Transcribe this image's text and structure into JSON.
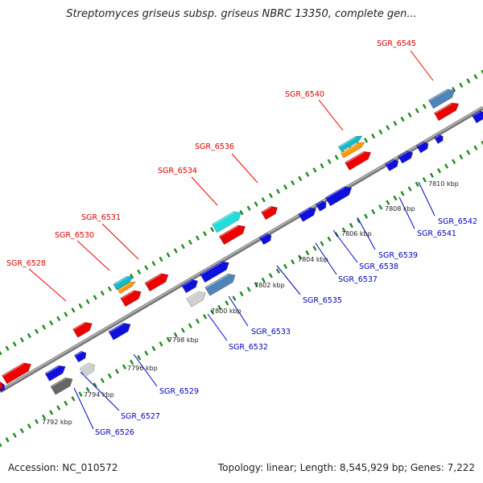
{
  "title": "Streptomyces griseus subsp. griseus NBRC 13350, complete gen...",
  "accession": "Accession: NC_010572",
  "topology": "Topology: linear; Length: 8,545,929 bp; Genes: 7,222",
  "ticks": [
    "7792 kbp",
    "7794 kbp",
    "7796 kbp",
    "7798 kbp",
    "7800 kbp",
    "7802 kbp",
    "7804 kbp",
    "7806 kbp",
    "7808 kbp",
    "7810 kbp"
  ],
  "labels_top": [
    "SGR_6528",
    "SGR_6530",
    "SGR_6531",
    "SGR_6534",
    "SGR_6536",
    "SGR_6540",
    "SGR_6545"
  ],
  "labels_bottom": [
    "SGR_6526",
    "SGR_6527",
    "SGR_6529",
    "SGR_6532",
    "SGR_6533",
    "SGR_6535",
    "SGR_6537",
    "SGR_6538",
    "SGR_6539",
    "SGR_6541",
    "SGR_6542"
  ],
  "colors": {
    "backbone": "#8c8c8c",
    "gene_red": "#ee0000",
    "gene_blue": "#1010dd",
    "gene_steel": "#4f84b8",
    "gene_cyan": "#22dddd",
    "gene_orange": "#ff9900",
    "gene_teal": "#11bbcc",
    "gene_grey_light": "#d0d0d0",
    "gene_grey_dark": "#666666",
    "dots": "#1e8a1e"
  }
}
